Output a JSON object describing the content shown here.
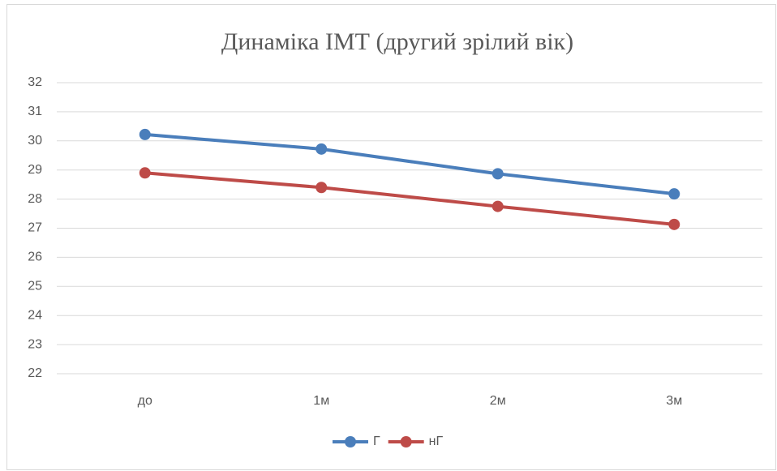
{
  "chart_data": {
    "type": "line",
    "title": "Динаміка ІМТ (другий зрілий вік)",
    "categories": [
      "до",
      "1м",
      "2м",
      "3м"
    ],
    "series": [
      {
        "name": "Г",
        "color": "#4a7ebb",
        "values": [
          30.22,
          29.72,
          28.87,
          28.18
        ]
      },
      {
        "name": "нГ",
        "color": "#be4b48",
        "values": [
          28.9,
          28.4,
          27.75,
          27.13
        ]
      }
    ],
    "ylim": [
      22,
      32
    ],
    "yticks": [
      22,
      23,
      24,
      25,
      26,
      27,
      28,
      29,
      30,
      31,
      32
    ],
    "grid": true,
    "legend": "bottom"
  }
}
